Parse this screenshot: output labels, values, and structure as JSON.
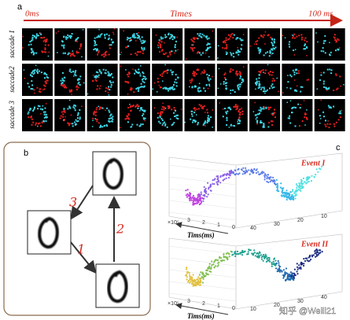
{
  "panel_a": {
    "label": "a",
    "time_start": "0ms",
    "time_label": "Times",
    "time_end": "100 ms",
    "rows": [
      "saccade 1",
      "saccade2",
      "saccade 3"
    ]
  },
  "panel_b": {
    "label": "b",
    "edges": [
      "3",
      "2",
      "1"
    ]
  },
  "panel_c": {
    "label": "c",
    "plots": [
      {
        "title": "Event I",
        "axis_label": "Tims(ms)",
        "exponent": "×10⁵",
        "depth_ticks": [
          "3",
          "2",
          "1",
          "0"
        ],
        "width_ticks": [
          "40",
          "30",
          "20",
          "10"
        ]
      },
      {
        "title": "Event II",
        "axis_label": "Tims(ms)",
        "exponent": "×10⁵",
        "depth_ticks": [
          "3",
          "2",
          "1",
          "0"
        ],
        "width_ticks": [
          "10",
          "20",
          "30",
          "40"
        ]
      }
    ]
  },
  "watermark": "知乎 @Weili21"
}
